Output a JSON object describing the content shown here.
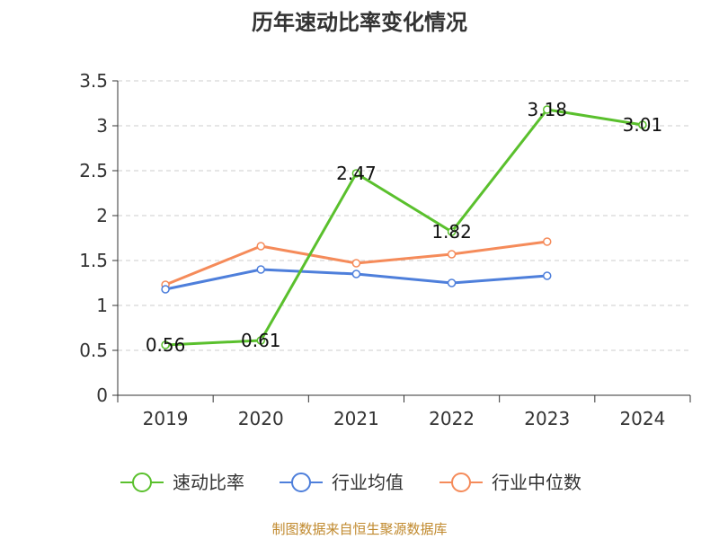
{
  "chart_data": {
    "type": "line",
    "title": "历年速动比率变化情况",
    "xlabel": "",
    "ylabel": "",
    "categories": [
      "2019",
      "2020",
      "2021",
      "2022",
      "2023",
      "2024"
    ],
    "ylim": [
      0,
      3.5
    ],
    "yticks": [
      0,
      0.5,
      1,
      1.5,
      2,
      2.5,
      3,
      3.5
    ],
    "ytick_labels": [
      "0",
      "0.5",
      "1",
      "1.5",
      "2",
      "2.5",
      "3",
      "3.5"
    ],
    "grid": true,
    "legend_position": "bottom",
    "series": [
      {
        "name": "速动比率",
        "color": "#5ac02d",
        "values": [
          0.56,
          0.61,
          2.47,
          1.82,
          3.18,
          3.01
        ],
        "labels": [
          "0.56",
          "0.61",
          "2.47",
          "1.82",
          "3.18",
          "3.01"
        ],
        "show_labels": true
      },
      {
        "name": "行业均值",
        "color": "#4e7fdb",
        "values": [
          1.18,
          1.4,
          1.35,
          1.25,
          1.33,
          null
        ],
        "show_labels": false
      },
      {
        "name": "行业中位数",
        "color": "#f58b5a",
        "values": [
          1.23,
          1.66,
          1.47,
          1.57,
          1.71,
          null
        ],
        "show_labels": false
      }
    ]
  },
  "source_text": "制图数据来自恒生聚源数据库"
}
